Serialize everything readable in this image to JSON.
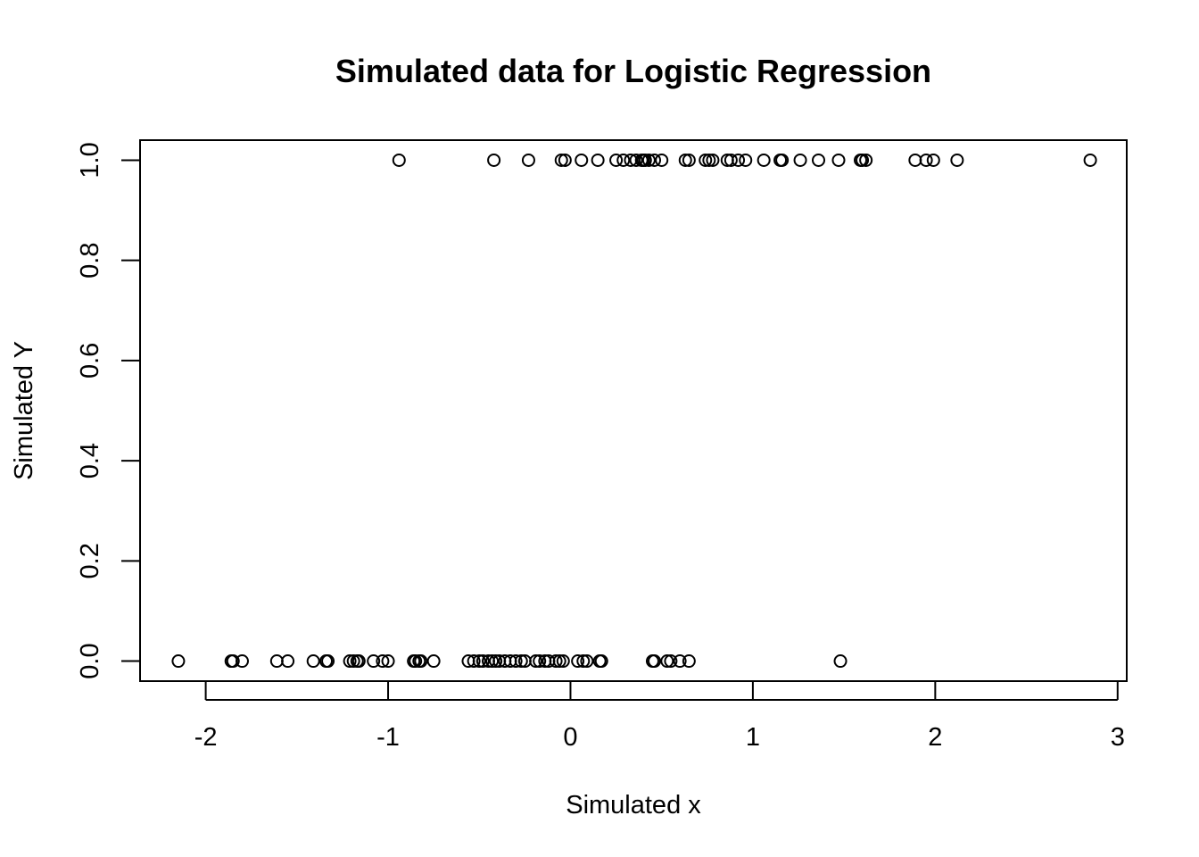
{
  "chart_data": {
    "type": "scatter",
    "title": "Simulated data for Logistic Regression",
    "xlabel": "Simulated x",
    "ylabel": "Simulated Y",
    "xlim": [
      -2.36,
      3.05
    ],
    "ylim": [
      -0.04,
      1.04
    ],
    "x_ticks": [
      -2,
      -1,
      0,
      1,
      2,
      3
    ],
    "y_ticks": [
      0.0,
      0.2,
      0.4,
      0.6,
      0.8,
      1.0
    ],
    "x_tick_labels": [
      "-2",
      "-1",
      "0",
      "1",
      "2",
      "3"
    ],
    "y_tick_labels": [
      "0.0",
      "0.2",
      "0.4",
      "0.6",
      "0.8",
      "1.0"
    ],
    "grid": false,
    "legend": null,
    "marker": "open-circle",
    "point_color": "#000000",
    "points_y1": [
      -0.94,
      -0.42,
      -0.23,
      -0.05,
      -0.03,
      0.06,
      0.15,
      0.25,
      0.29,
      0.33,
      0.36,
      0.39,
      0.4,
      0.41,
      0.43,
      0.46,
      0.5,
      0.63,
      0.65,
      0.74,
      0.76,
      0.78,
      0.86,
      0.88,
      0.92,
      0.96,
      1.06,
      1.15,
      1.16,
      1.26,
      1.36,
      1.47,
      1.59,
      1.6,
      1.62,
      1.89,
      1.95,
      1.99,
      2.12,
      2.85
    ],
    "points_y0": [
      -2.15,
      -1.86,
      -1.85,
      -1.8,
      -1.61,
      -1.55,
      -1.41,
      -1.34,
      -1.33,
      -1.21,
      -1.19,
      -1.17,
      -1.16,
      -1.08,
      -1.03,
      -1.0,
      -0.86,
      -0.85,
      -0.83,
      -0.82,
      -0.75,
      -0.56,
      -0.53,
      -0.5,
      -0.48,
      -0.45,
      -0.43,
      -0.41,
      -0.39,
      -0.36,
      -0.33,
      -0.3,
      -0.27,
      -0.25,
      -0.19,
      -0.17,
      -0.14,
      -0.12,
      -0.08,
      -0.06,
      -0.04,
      0.04,
      0.07,
      0.09,
      0.16,
      0.17,
      0.45,
      0.46,
      0.53,
      0.55,
      0.6,
      0.65,
      1.48
    ]
  }
}
